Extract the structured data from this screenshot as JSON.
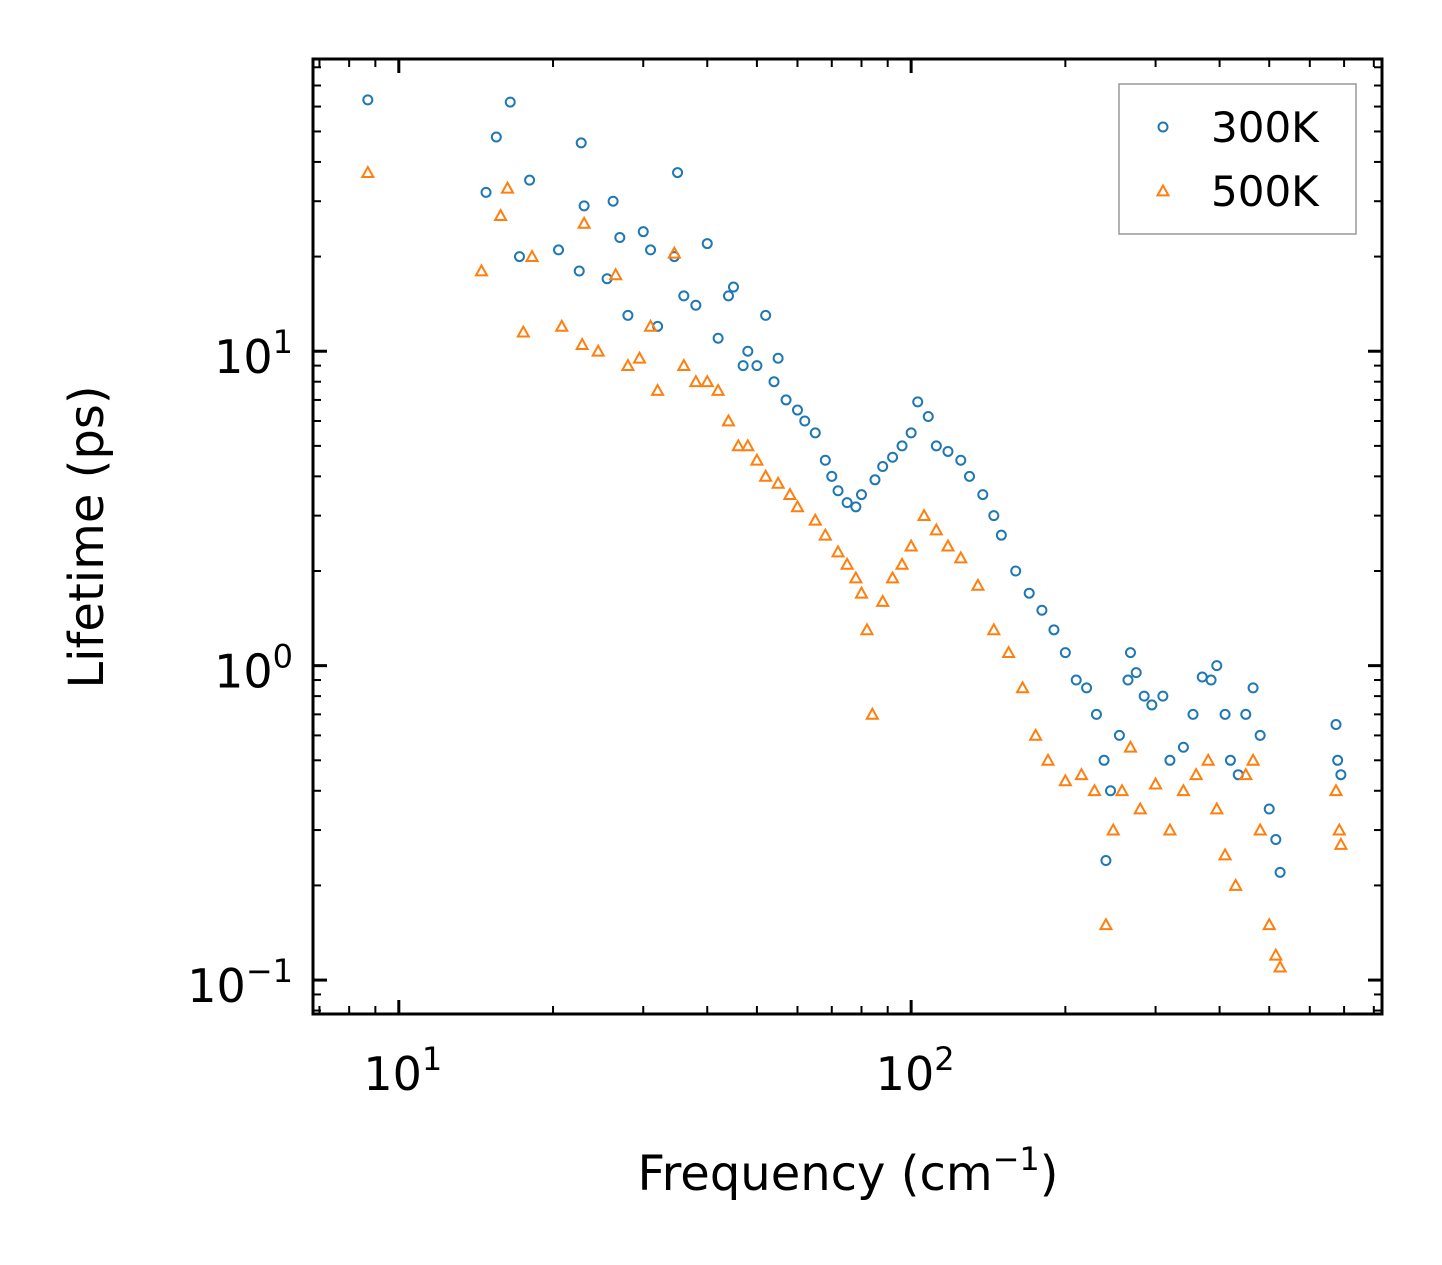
{
  "chart_data": {
    "type": "scatter",
    "title": "",
    "xlabel": "Frequency (cm",
    "xlabel_sup": "−1",
    "xlabel_end": ")",
    "ylabel": "Lifetime (ps)",
    "xscale": "log",
    "yscale": "log",
    "xlim": [
      6.8,
      830
    ],
    "ylim": [
      0.078,
      85
    ],
    "x_ticks": [
      {
        "value": 10,
        "base": "10",
        "exp": "1"
      },
      {
        "value": 100,
        "base": "10",
        "exp": "2"
      }
    ],
    "y_ticks": [
      {
        "value": 0.1,
        "base": "10",
        "exp": "−1"
      },
      {
        "value": 1,
        "base": "10",
        "exp": "0"
      },
      {
        "value": 10,
        "base": "10",
        "exp": "1"
      }
    ],
    "legend_position": "top-right",
    "series": [
      {
        "name": "300K",
        "color": "#1f77b4",
        "marker": "circle",
        "points": [
          [
            8.7,
            63
          ],
          [
            14.8,
            32
          ],
          [
            15.5,
            48
          ],
          [
            16.5,
            62
          ],
          [
            17.2,
            20
          ],
          [
            18,
            35
          ],
          [
            20.5,
            21
          ],
          [
            22.5,
            18
          ],
          [
            22.7,
            46
          ],
          [
            23,
            29
          ],
          [
            25.5,
            17
          ],
          [
            26.2,
            30
          ],
          [
            27,
            23
          ],
          [
            28,
            13
          ],
          [
            30,
            24
          ],
          [
            31,
            21
          ],
          [
            32,
            12
          ],
          [
            34.5,
            20
          ],
          [
            35,
            37
          ],
          [
            36,
            15
          ],
          [
            38,
            14
          ],
          [
            40,
            22
          ],
          [
            42,
            11
          ],
          [
            44,
            15
          ],
          [
            45,
            16
          ],
          [
            47,
            9
          ],
          [
            48,
            10
          ],
          [
            50,
            9
          ],
          [
            52,
            13
          ],
          [
            54,
            8
          ],
          [
            55,
            9.5
          ],
          [
            57,
            7
          ],
          [
            60,
            6.5
          ],
          [
            62,
            6
          ],
          [
            65,
            5.5
          ],
          [
            68,
            4.5
          ],
          [
            70,
            4
          ],
          [
            72,
            3.6
          ],
          [
            75,
            3.3
          ],
          [
            78,
            3.2
          ],
          [
            80,
            3.5
          ],
          [
            85,
            3.9
          ],
          [
            88,
            4.3
          ],
          [
            92,
            4.6
          ],
          [
            96,
            5
          ],
          [
            100,
            5.5
          ],
          [
            103,
            6.9
          ],
          [
            108,
            6.2
          ],
          [
            112,
            5
          ],
          [
            118,
            4.8
          ],
          [
            125,
            4.5
          ],
          [
            130,
            4
          ],
          [
            138,
            3.5
          ],
          [
            145,
            3
          ],
          [
            150,
            2.6
          ],
          [
            160,
            2
          ],
          [
            170,
            1.7
          ],
          [
            180,
            1.5
          ],
          [
            190,
            1.3
          ],
          [
            200,
            1.1
          ],
          [
            210,
            0.9
          ],
          [
            220,
            0.85
          ],
          [
            230,
            0.7
          ],
          [
            238,
            0.5
          ],
          [
            240,
            0.24
          ],
          [
            245,
            0.4
          ],
          [
            255,
            0.6
          ],
          [
            265,
            0.9
          ],
          [
            268,
            1.1
          ],
          [
            275,
            0.95
          ],
          [
            285,
            0.8
          ],
          [
            295,
            0.75
          ],
          [
            310,
            0.8
          ],
          [
            320,
            0.5
          ],
          [
            340,
            0.55
          ],
          [
            355,
            0.7
          ],
          [
            370,
            0.92
          ],
          [
            385,
            0.9
          ],
          [
            395,
            1.0
          ],
          [
            410,
            0.7
          ],
          [
            420,
            0.5
          ],
          [
            435,
            0.45
          ],
          [
            450,
            0.7
          ],
          [
            465,
            0.85
          ],
          [
            480,
            0.6
          ],
          [
            500,
            0.35
          ],
          [
            515,
            0.28
          ],
          [
            525,
            0.22
          ],
          [
            675,
            0.65
          ],
          [
            680,
            0.5
          ],
          [
            690,
            0.45
          ]
        ]
      },
      {
        "name": "500K",
        "color": "#ff7f0e",
        "marker": "triangle",
        "points": [
          [
            8.7,
            37
          ],
          [
            14.5,
            18
          ],
          [
            15.8,
            27
          ],
          [
            16.3,
            33
          ],
          [
            17.5,
            11.5
          ],
          [
            18.2,
            20
          ],
          [
            20.8,
            12
          ],
          [
            22.8,
            10.5
          ],
          [
            23,
            25.5
          ],
          [
            24.5,
            10
          ],
          [
            26.5,
            17.5
          ],
          [
            28,
            9
          ],
          [
            29.5,
            9.5
          ],
          [
            31,
            12
          ],
          [
            32,
            7.5
          ],
          [
            34.5,
            20.5
          ],
          [
            36,
            9
          ],
          [
            38,
            8
          ],
          [
            40,
            8
          ],
          [
            42,
            7.5
          ],
          [
            44,
            6
          ],
          [
            46,
            5
          ],
          [
            48,
            5
          ],
          [
            50,
            4.5
          ],
          [
            52,
            4
          ],
          [
            55,
            3.8
          ],
          [
            58,
            3.5
          ],
          [
            60,
            3.2
          ],
          [
            65,
            2.9
          ],
          [
            68,
            2.6
          ],
          [
            72,
            2.3
          ],
          [
            75,
            2.1
          ],
          [
            78,
            1.9
          ],
          [
            80,
            1.7
          ],
          [
            82,
            1.3
          ],
          [
            84,
            0.7
          ],
          [
            88,
            1.6
          ],
          [
            92,
            1.9
          ],
          [
            96,
            2.1
          ],
          [
            100,
            2.4
          ],
          [
            106,
            3.0
          ],
          [
            112,
            2.7
          ],
          [
            118,
            2.4
          ],
          [
            125,
            2.2
          ],
          [
            135,
            1.8
          ],
          [
            145,
            1.3
          ],
          [
            155,
            1.1
          ],
          [
            165,
            0.85
          ],
          [
            175,
            0.6
          ],
          [
            185,
            0.5
          ],
          [
            200,
            0.43
          ],
          [
            215,
            0.45
          ],
          [
            228,
            0.4
          ],
          [
            240,
            0.15
          ],
          [
            248,
            0.3
          ],
          [
            258,
            0.4
          ],
          [
            268,
            0.55
          ],
          [
            280,
            0.35
          ],
          [
            300,
            0.42
          ],
          [
            320,
            0.3
          ],
          [
            340,
            0.4
          ],
          [
            360,
            0.45
          ],
          [
            380,
            0.5
          ],
          [
            395,
            0.35
          ],
          [
            410,
            0.25
          ],
          [
            430,
            0.2
          ],
          [
            450,
            0.45
          ],
          [
            465,
            0.5
          ],
          [
            480,
            0.3
          ],
          [
            500,
            0.15
          ],
          [
            515,
            0.12
          ],
          [
            525,
            0.11
          ],
          [
            675,
            0.4
          ],
          [
            685,
            0.3
          ],
          [
            690,
            0.27
          ]
        ]
      }
    ]
  }
}
